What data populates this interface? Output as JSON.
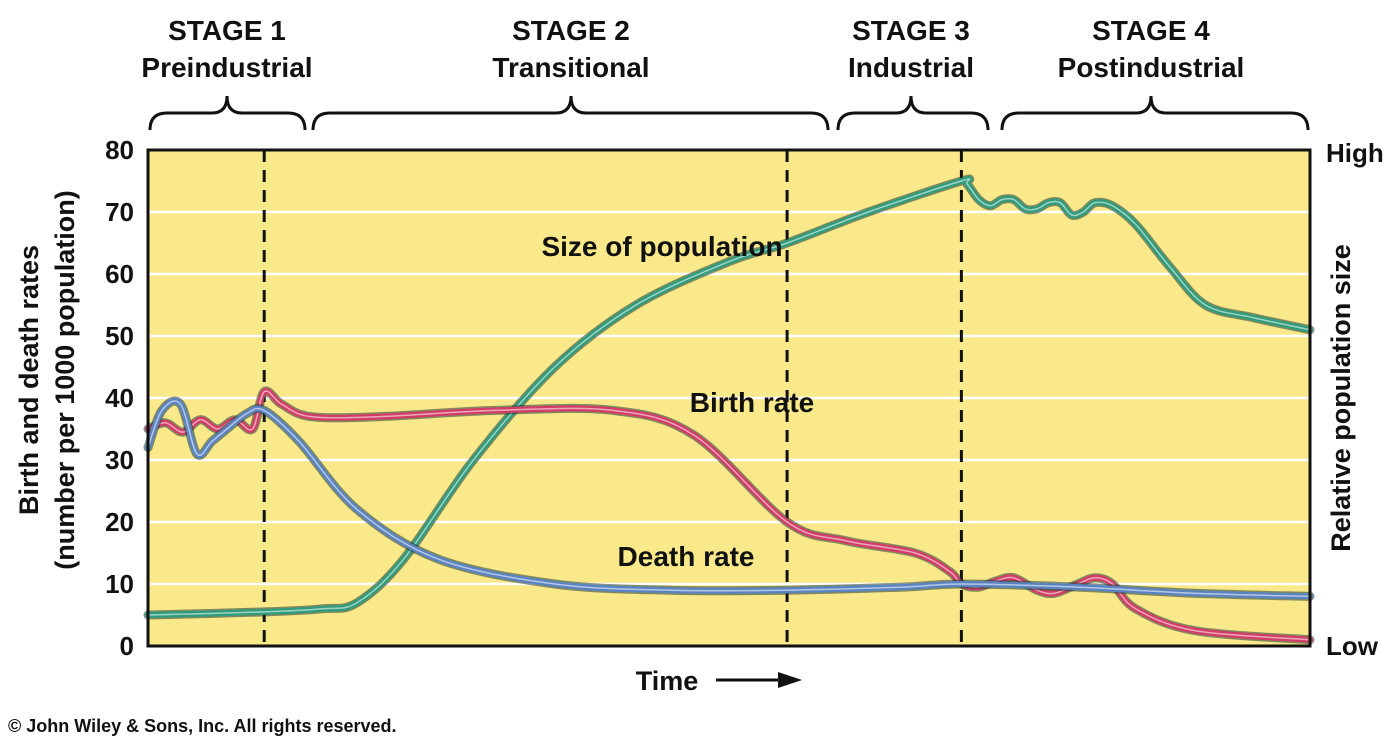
{
  "chart_data": {
    "type": "line",
    "stages": [
      {
        "title": "STAGE 1",
        "subtitle": "Preindustrial"
      },
      {
        "title": "STAGE 2",
        "subtitle": "Transitional"
      },
      {
        "title": "STAGE 3",
        "subtitle": "Industrial"
      },
      {
        "title": "STAGE 4",
        "subtitle": "Postindustrial"
      }
    ],
    "stage_boundaries": [
      1.0,
      5.5,
      7.0
    ],
    "xlim": [
      0,
      10
    ],
    "xlabel": "Time",
    "ylabel": [
      "Birth and death rates",
      "(number per 1000 population)"
    ],
    "ylim": [
      0,
      80
    ],
    "yticks": [
      0,
      10,
      20,
      30,
      40,
      50,
      60,
      70,
      80
    ],
    "y2label": "Relative population size",
    "y2ticks": [
      "High",
      "Low"
    ],
    "grid": true,
    "background_color": "#f9e98a",
    "series": [
      {
        "name": "Size of population",
        "color": "#2e9c7c",
        "x": [
          0,
          1.0,
          1.5,
          1.8,
          2.2,
          2.8,
          3.5,
          4.2,
          5.0,
          5.5,
          6.2,
          7.0,
          7.05,
          7.15,
          7.25,
          7.35,
          7.45,
          7.55,
          7.65,
          7.75,
          7.85,
          7.95,
          8.05,
          8.15,
          8.3,
          8.5,
          8.8,
          9.1,
          9.5,
          10.0
        ],
        "values": [
          5,
          5.5,
          6,
          7,
          14,
          30,
          45,
          55,
          62,
          65,
          70,
          75,
          74.5,
          72,
          71,
          72,
          72,
          70.5,
          70.5,
          71.5,
          71.5,
          69.5,
          70,
          71.5,
          71,
          68,
          61,
          55,
          53,
          51
        ]
      },
      {
        "name": "Birth rate",
        "color": "#d23c66",
        "x": [
          0,
          0.15,
          0.3,
          0.45,
          0.6,
          0.75,
          0.9,
          1.0,
          1.15,
          1.4,
          2.0,
          3.0,
          4.0,
          4.7,
          5.5,
          6.0,
          6.6,
          6.9,
          7.0,
          7.15,
          7.3,
          7.45,
          7.65,
          7.8,
          8.0,
          8.15,
          8.3,
          8.5,
          9.0,
          10.0
        ],
        "values": [
          35,
          36,
          34.5,
          36.5,
          35,
          36.5,
          35,
          41,
          39,
          37,
          37,
          38,
          38,
          34,
          20,
          17,
          15,
          12,
          10,
          9.5,
          10.5,
          11,
          9,
          8.5,
          10,
          11,
          10,
          6,
          2.5,
          1
        ]
      },
      {
        "name": "Death rate",
        "color": "#5a83c2",
        "x": [
          0,
          0.12,
          0.28,
          0.42,
          0.55,
          0.68,
          0.85,
          1.0,
          1.3,
          1.8,
          2.5,
          3.5,
          4.5,
          5.5,
          6.5,
          7.0,
          8.0,
          9.0,
          10.0
        ],
        "values": [
          32,
          38,
          39,
          31,
          33,
          35,
          37.5,
          38,
          33,
          22,
          14,
          10,
          9,
          9,
          9.5,
          10,
          9.5,
          8.5,
          8
        ]
      }
    ],
    "annotations": [
      {
        "text": "Size of population",
        "x": 3.9,
        "y": 64
      },
      {
        "text": "Birth rate",
        "x": 5.0,
        "y": 39
      },
      {
        "text": "Death rate",
        "x": 4.7,
        "y": 14
      }
    ]
  },
  "copyright": "© John Wiley & Sons, Inc. All rights reserved."
}
